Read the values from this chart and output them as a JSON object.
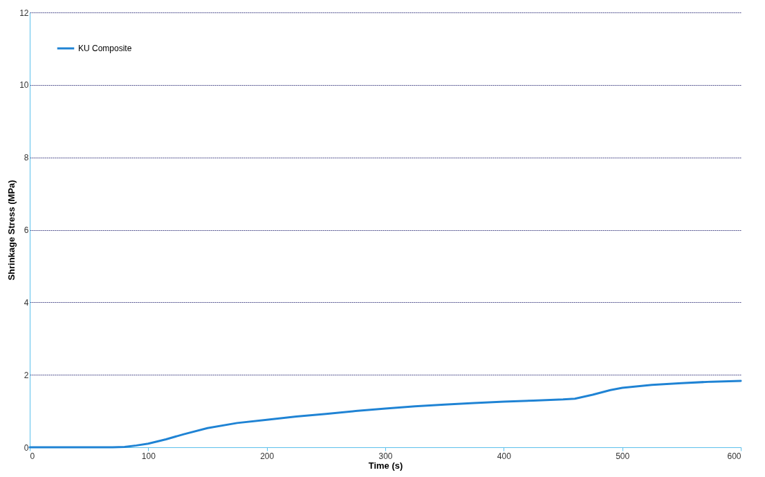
{
  "chart_data": {
    "type": "line",
    "xlabel": "Time (s)",
    "ylabel": "Shrinkage Stress (MPa)",
    "x": [
      0,
      40,
      70,
      80,
      90,
      100,
      115,
      130,
      150,
      175,
      200,
      225,
      250,
      275,
      300,
      325,
      350,
      375,
      400,
      425,
      450,
      460,
      475,
      490,
      500,
      525,
      550,
      575,
      600
    ],
    "series": [
      {
        "name": "KU Composite",
        "color": "#1f83d4",
        "values": [
          0,
          0,
          0,
          0.01,
          0.05,
          0.1,
          0.22,
          0.36,
          0.53,
          0.67,
          0.76,
          0.85,
          0.92,
          1.0,
          1.07,
          1.13,
          1.18,
          1.22,
          1.26,
          1.29,
          1.32,
          1.34,
          1.45,
          1.58,
          1.64,
          1.72,
          1.77,
          1.81,
          1.83
        ]
      }
    ],
    "xlim": [
      0,
      600
    ],
    "xticks": [
      0,
      100,
      200,
      300,
      400,
      500,
      600
    ],
    "ylim": [
      0,
      12
    ],
    "yticks": [
      0,
      2,
      4,
      6,
      8,
      10,
      12
    ],
    "grid": "y",
    "legend": "top left",
    "marker": "none",
    "line_style": "solid"
  }
}
